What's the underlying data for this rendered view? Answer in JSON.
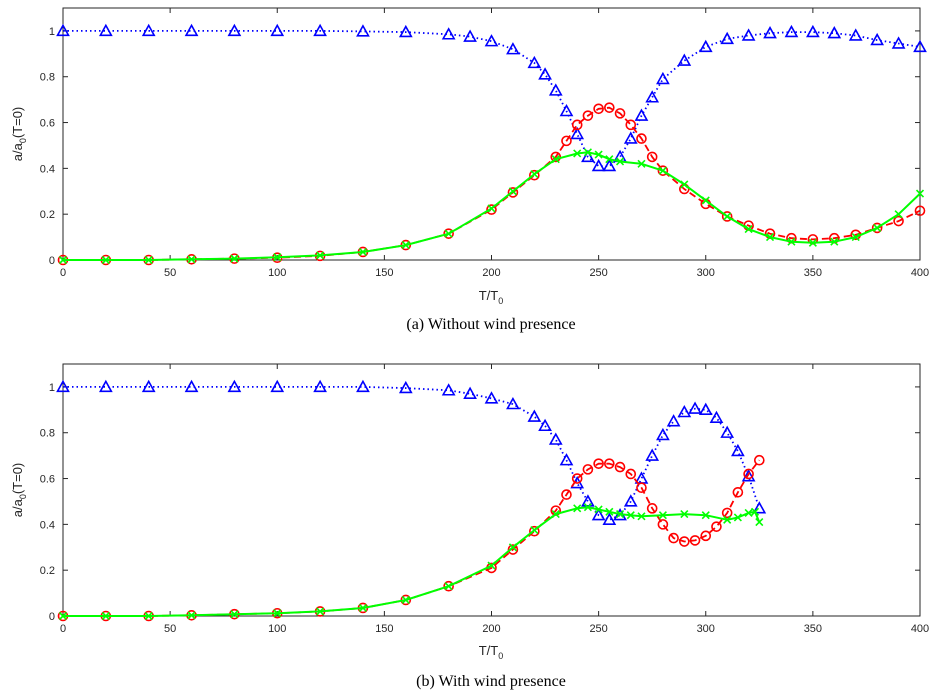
{
  "chart_data": [
    {
      "type": "line",
      "caption": "(a) Without wind presence",
      "xlabel_main": "T/T",
      "xlabel_sub": "0",
      "ylabel_main": "a/a",
      "ylabel_sub": "0",
      "ylabel_tail": "(T=0)",
      "xlim": [
        0,
        400
      ],
      "ylim": [
        0,
        1.1
      ],
      "xticks": [
        0,
        50,
        100,
        150,
        200,
        250,
        300,
        350,
        400
      ],
      "yticks": [
        0,
        0.2,
        0.4,
        0.6,
        0.8,
        1
      ],
      "grid": false,
      "series": [
        {
          "line_style": "dotted",
          "marker": "triangle",
          "color": "#0000ff",
          "x": [
            0,
            20,
            40,
            60,
            80,
            100,
            120,
            140,
            160,
            180,
            190,
            200,
            210,
            220,
            225,
            230,
            235,
            240,
            245,
            250,
            255,
            260,
            265,
            270,
            275,
            280,
            290,
            300,
            310,
            320,
            330,
            340,
            350,
            360,
            370,
            380,
            390,
            400
          ],
          "y": [
            1.0,
            1.0,
            1.0,
            1.0,
            1.0,
            1.0,
            1.0,
            0.998,
            0.995,
            0.985,
            0.975,
            0.955,
            0.92,
            0.86,
            0.81,
            0.74,
            0.65,
            0.55,
            0.45,
            0.41,
            0.41,
            0.45,
            0.53,
            0.63,
            0.71,
            0.79,
            0.87,
            0.93,
            0.965,
            0.98,
            0.99,
            0.995,
            0.995,
            0.99,
            0.98,
            0.96,
            0.945,
            0.93
          ]
        },
        {
          "line_style": "dashed",
          "marker": "circle",
          "color": "#ff0000",
          "x": [
            0,
            20,
            40,
            60,
            80,
            100,
            120,
            140,
            160,
            180,
            200,
            210,
            220,
            230,
            235,
            240,
            245,
            250,
            255,
            260,
            265,
            270,
            275,
            280,
            290,
            300,
            310,
            320,
            330,
            340,
            350,
            360,
            370,
            380,
            390,
            400
          ],
          "y": [
            0.0,
            0.0,
            0.0,
            0.003,
            0.006,
            0.01,
            0.018,
            0.035,
            0.065,
            0.115,
            0.22,
            0.295,
            0.37,
            0.45,
            0.52,
            0.59,
            0.63,
            0.66,
            0.665,
            0.64,
            0.59,
            0.53,
            0.45,
            0.39,
            0.31,
            0.245,
            0.19,
            0.15,
            0.115,
            0.095,
            0.09,
            0.095,
            0.11,
            0.14,
            0.17,
            0.215
          ]
        },
        {
          "line_style": "solid",
          "marker": "x",
          "color": "#00ff00",
          "x": [
            0,
            20,
            40,
            60,
            80,
            100,
            120,
            140,
            160,
            180,
            200,
            210,
            220,
            230,
            240,
            245,
            250,
            255,
            260,
            270,
            280,
            290,
            300,
            310,
            320,
            330,
            340,
            350,
            360,
            370,
            380,
            390,
            400
          ],
          "y": [
            0.0,
            0.0,
            0.0,
            0.003,
            0.006,
            0.012,
            0.02,
            0.035,
            0.065,
            0.115,
            0.225,
            0.3,
            0.375,
            0.44,
            0.465,
            0.47,
            0.46,
            0.44,
            0.43,
            0.42,
            0.39,
            0.33,
            0.26,
            0.19,
            0.135,
            0.1,
            0.08,
            0.075,
            0.08,
            0.1,
            0.14,
            0.2,
            0.29
          ]
        }
      ]
    },
    {
      "type": "line",
      "caption": "(b) With wind presence",
      "xlabel_main": "T/T",
      "xlabel_sub": "0",
      "ylabel_main": "a/a",
      "ylabel_sub": "0",
      "ylabel_tail": "(T=0)",
      "xlim": [
        0,
        400
      ],
      "ylim": [
        0,
        1.1
      ],
      "xticks": [
        0,
        50,
        100,
        150,
        200,
        250,
        300,
        350,
        400
      ],
      "yticks": [
        0,
        0.2,
        0.4,
        0.6,
        0.8,
        1
      ],
      "grid": false,
      "series": [
        {
          "line_style": "dotted",
          "marker": "triangle",
          "color": "#0000ff",
          "x": [
            0,
            20,
            40,
            60,
            80,
            100,
            120,
            140,
            160,
            180,
            190,
            200,
            210,
            220,
            225,
            230,
            235,
            240,
            245,
            250,
            255,
            260,
            265,
            270,
            275,
            280,
            285,
            290,
            295,
            300,
            305,
            310,
            315,
            320,
            325
          ],
          "y": [
            1.0,
            1.0,
            1.0,
            1.0,
            1.0,
            1.0,
            1.0,
            1.0,
            0.995,
            0.985,
            0.97,
            0.95,
            0.925,
            0.87,
            0.83,
            0.77,
            0.68,
            0.58,
            0.5,
            0.44,
            0.42,
            0.44,
            0.5,
            0.6,
            0.7,
            0.79,
            0.85,
            0.89,
            0.905,
            0.9,
            0.865,
            0.8,
            0.72,
            0.61,
            0.47
          ]
        },
        {
          "line_style": "dashed",
          "marker": "circle",
          "color": "#ff0000",
          "x": [
            0,
            20,
            40,
            60,
            80,
            100,
            120,
            140,
            160,
            180,
            200,
            210,
            220,
            230,
            235,
            240,
            245,
            250,
            255,
            260,
            265,
            270,
            275,
            280,
            285,
            290,
            295,
            300,
            305,
            310,
            315,
            320,
            325
          ],
          "y": [
            0.0,
            0.0,
            0.0,
            0.003,
            0.008,
            0.012,
            0.02,
            0.035,
            0.07,
            0.13,
            0.21,
            0.29,
            0.37,
            0.46,
            0.53,
            0.6,
            0.64,
            0.665,
            0.665,
            0.65,
            0.62,
            0.56,
            0.47,
            0.4,
            0.34,
            0.325,
            0.33,
            0.35,
            0.39,
            0.45,
            0.54,
            0.62,
            0.68
          ]
        },
        {
          "line_style": "solid",
          "marker": "x",
          "color": "#00ff00",
          "x": [
            0,
            20,
            40,
            60,
            80,
            100,
            120,
            140,
            160,
            180,
            200,
            210,
            220,
            230,
            240,
            245,
            250,
            255,
            260,
            265,
            270,
            280,
            290,
            300,
            310,
            315,
            320,
            323,
            325
          ],
          "y": [
            0.0,
            0.0,
            0.0,
            0.003,
            0.008,
            0.012,
            0.02,
            0.035,
            0.07,
            0.13,
            0.22,
            0.3,
            0.375,
            0.445,
            0.47,
            0.475,
            0.465,
            0.455,
            0.445,
            0.44,
            0.435,
            0.44,
            0.445,
            0.44,
            0.42,
            0.43,
            0.45,
            0.455,
            0.41
          ]
        }
      ]
    }
  ]
}
